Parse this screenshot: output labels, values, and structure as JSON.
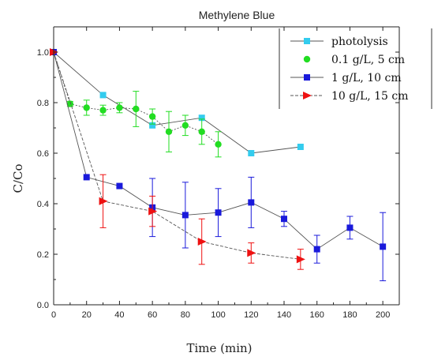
{
  "chart_data": {
    "type": "line",
    "title": "Methylene Blue",
    "xlabel": "Time (min)",
    "ylabel": "C/Co",
    "xlim": [
      0,
      210
    ],
    "ylim": [
      0,
      1.1
    ],
    "xticks": [
      0,
      20,
      40,
      60,
      80,
      100,
      120,
      140,
      160,
      180,
      200
    ],
    "yticks": [
      0.0,
      0.2,
      0.4,
      0.6,
      0.8,
      1.0
    ],
    "xtick_labels": [
      "0",
      "20",
      "40",
      "60",
      "80",
      "100",
      "120",
      "140",
      "160",
      "180",
      "200"
    ],
    "ytick_labels": [
      "0.0",
      "0.2",
      "0.4",
      "0.6",
      "0.8",
      "1.0"
    ],
    "grid": false,
    "legend_position": "top-right",
    "series": [
      {
        "name": "photolysis",
        "color": "#33ccee",
        "marker": "square",
        "line_style": "solid",
        "x": [
          0,
          30,
          60,
          90,
          120,
          150
        ],
        "y": [
          1.0,
          0.83,
          0.71,
          0.74,
          0.6,
          0.625
        ],
        "err": [
          0,
          0,
          0,
          0,
          0,
          0
        ]
      },
      {
        "name": "0.1 g/L, 5 cm",
        "color": "#22dd22",
        "marker": "circle",
        "line_style": "dotted",
        "x": [
          0,
          10,
          20,
          30,
          40,
          50,
          60,
          70,
          80,
          90,
          100
        ],
        "y": [
          1.0,
          0.795,
          0.78,
          0.77,
          0.78,
          0.775,
          0.745,
          0.685,
          0.71,
          0.685,
          0.635
        ],
        "err": [
          0,
          0.01,
          0.03,
          0.02,
          0.02,
          0.07,
          0.03,
          0.08,
          0.04,
          0.05,
          0.05
        ]
      },
      {
        "name": "1 g/L, 10 cm",
        "color": "#1a1adb",
        "marker": "square",
        "line_style": "solid",
        "x": [
          0,
          20,
          40,
          60,
          80,
          100,
          120,
          140,
          160,
          180,
          200
        ],
        "y": [
          1.0,
          0.505,
          0.47,
          0.385,
          0.355,
          0.365,
          0.405,
          0.34,
          0.22,
          0.305,
          0.23
        ],
        "err": [
          0,
          0,
          0,
          0.115,
          0.13,
          0.095,
          0.1,
          0.03,
          0.055,
          0.045,
          0.135
        ]
      },
      {
        "name": "10  g/L, 15 cm",
        "color": "#ee1111",
        "marker": "triangle-right",
        "line_style": "dashed",
        "x": [
          0,
          30,
          60,
          90,
          120,
          150
        ],
        "y": [
          1.0,
          0.41,
          0.37,
          0.25,
          0.205,
          0.18
        ],
        "err": [
          0,
          0.105,
          0.06,
          0.09,
          0.04,
          0.04
        ]
      }
    ]
  }
}
